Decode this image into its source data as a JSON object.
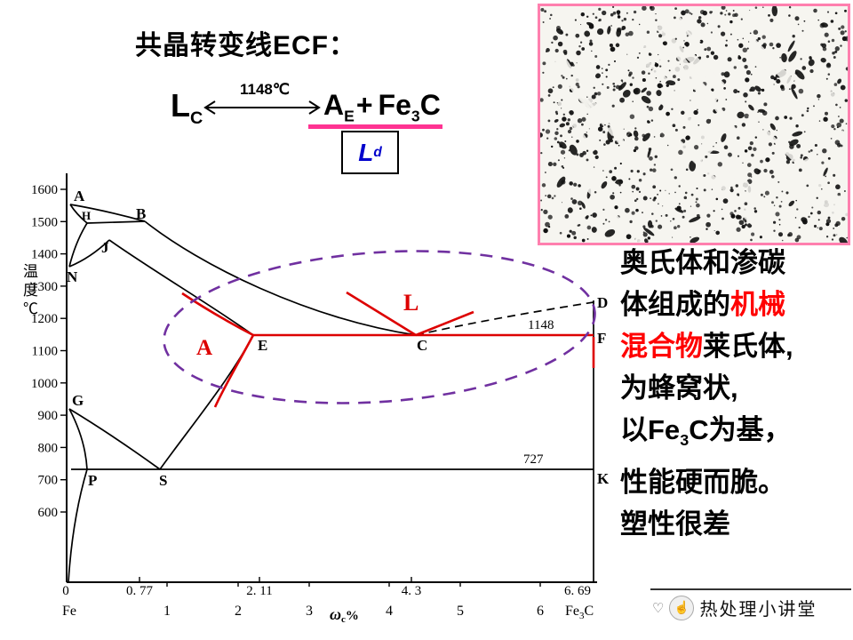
{
  "title": "共晶转变线ECF：",
  "colors": {
    "pink_accent": "#ff3392",
    "micrograph_border": "#ff7fae",
    "highlight_red": "#dd0000",
    "text_red": "#ff0000",
    "ellipse_purple": "#7030a0",
    "product_blue": "#0000cc"
  },
  "equation": {
    "lhs": {
      "main": "L",
      "sub": "C"
    },
    "arrow_label": "1148℃",
    "rhs": {
      "a_main": "A",
      "a_sub": "E",
      "plus": "+",
      "fe": "Fe",
      "fe_sub": "3",
      "c": "C"
    },
    "product": {
      "main": "L",
      "sub": "d"
    }
  },
  "diagram": {
    "y_axis_title": "温度℃",
    "x_axis_label": {
      "main": "ω",
      "sub": "c",
      "suffix": "%"
    },
    "y_ticks": [
      "1600",
      "1500",
      "1400",
      "1300",
      "1200",
      "1100",
      "1000",
      "900",
      "800",
      "700",
      "600"
    ],
    "x_row1": [
      "0",
      "0. 77",
      "2. 11",
      "4. 3",
      "6. 69"
    ],
    "x_row2": [
      "Fe",
      "1",
      "2",
      "3",
      "4",
      "5",
      "6"
    ],
    "x_right_label": {
      "fe": "Fe",
      "sub": "3",
      "c": "C"
    },
    "point_labels": [
      "A",
      "H",
      "B",
      "J",
      "N",
      "D",
      "E",
      "C",
      "F",
      "G",
      "P",
      "S",
      "K"
    ],
    "isotherms": {
      "eutectic": "1148",
      "eutectoid": "727"
    },
    "region_labels": {
      "austenite": "A",
      "liquid": "L"
    }
  },
  "right_panel": {
    "lines": [
      [
        {
          "t": "奥氏体和渗碳"
        }
      ],
      [
        {
          "t": "体组成的"
        },
        {
          "t": "机械",
          "red": true
        }
      ],
      [
        {
          "t": "混合物",
          "red": true
        },
        {
          "t": "莱氏体,"
        }
      ],
      [
        {
          "t": "为蜂窝状,"
        }
      ],
      [
        {
          "t": " 以Fe"
        },
        {
          "t": "3",
          "sub": true
        },
        {
          "t": "C为基，"
        }
      ],
      [
        {
          "t": "性能硬而脆。"
        }
      ],
      [
        {
          "t": "塑性很差"
        }
      ]
    ]
  },
  "footer": {
    "brand": "热处理小讲堂",
    "heart_icon": "♡",
    "hand_icon": "☝"
  }
}
